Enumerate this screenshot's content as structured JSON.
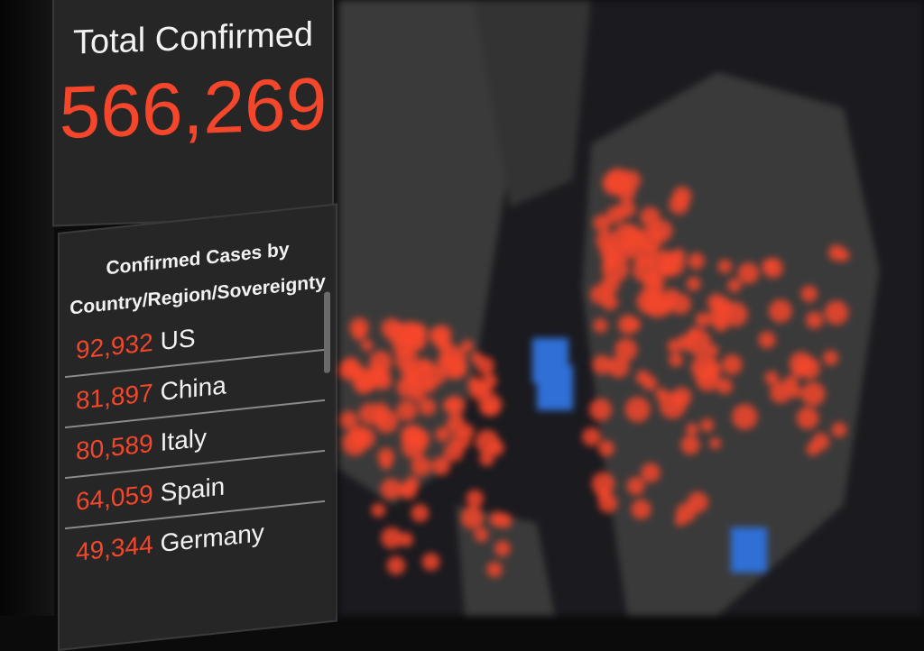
{
  "total": {
    "label": "Total Confirmed",
    "value": "566,269"
  },
  "country_list": {
    "heading_line1": "Confirmed Cases by",
    "heading_line2": "Country/Region/Sovereignty",
    "rows": [
      {
        "count": "92,932",
        "name": "US"
      },
      {
        "count": "81,897",
        "name": "China"
      },
      {
        "count": "80,589",
        "name": "Italy"
      },
      {
        "count": "64,059",
        "name": "Spain"
      },
      {
        "count": "49,344",
        "name": "Germany"
      }
    ]
  },
  "colors": {
    "accent": "#f4462b",
    "panel": "#262626",
    "map_land": "#3b3b3b",
    "map_water": "#1a1a1f",
    "marker_blue": "#2f6fd6"
  }
}
